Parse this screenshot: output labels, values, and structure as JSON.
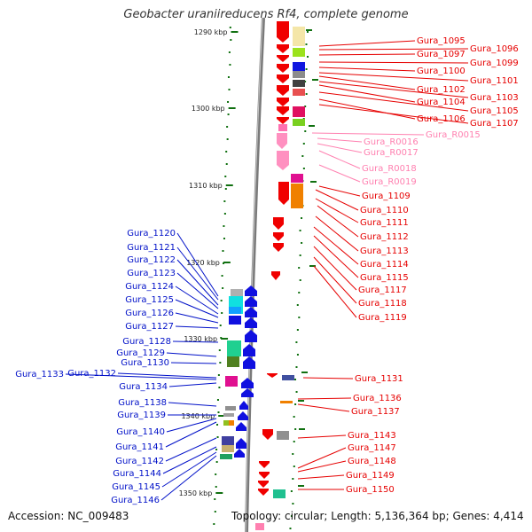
{
  "title": "Geobacter uraniireducens Rf4, complete genome",
  "footer": {
    "accession": "Accession: NC_009483",
    "topology": "Topology: circular; Length: 5,136,364 bp; Genes: 4,414"
  },
  "colors": {
    "forward_label": "#e60000",
    "reverse_label": "#0010c8",
    "rna_label": "#ff80b0",
    "backbone": "#808080",
    "tick": "#107010",
    "gene_forward": "#f00000",
    "gene_reverse": "#1010e0",
    "gene_rna": "#ff90c0"
  },
  "scale": {
    "unit": "kbp",
    "ticks": [
      {
        "label": "1290 kbp",
        "value": 1290
      },
      {
        "label": "1300 kbp",
        "value": 1300
      },
      {
        "label": "1310 kbp",
        "value": 1310
      },
      {
        "label": "1320 kbp",
        "value": 1320
      },
      {
        "label": "1330 kbp",
        "value": 1330
      },
      {
        "label": "1340 kbp",
        "value": 1340
      },
      {
        "label": "1350 kbp",
        "value": 1350
      }
    ]
  },
  "labels_right": [
    {
      "text": "Gura_1095",
      "kind": "forward"
    },
    {
      "text": "Gura_1096",
      "kind": "forward"
    },
    {
      "text": "Gura_1097",
      "kind": "forward"
    },
    {
      "text": "Gura_1099",
      "kind": "forward"
    },
    {
      "text": "Gura_1100",
      "kind": "forward"
    },
    {
      "text": "Gura_1101",
      "kind": "forward"
    },
    {
      "text": "Gura_1102",
      "kind": "forward"
    },
    {
      "text": "Gura_1103",
      "kind": "forward"
    },
    {
      "text": "Gura_1104",
      "kind": "forward"
    },
    {
      "text": "Gura_1105",
      "kind": "forward"
    },
    {
      "text": "Gura_1106",
      "kind": "forward"
    },
    {
      "text": "Gura_1107",
      "kind": "forward"
    },
    {
      "text": "Gura_R0015",
      "kind": "rna"
    },
    {
      "text": "Gura_R0016",
      "kind": "rna"
    },
    {
      "text": "Gura_R0017",
      "kind": "rna"
    },
    {
      "text": "Gura_R0018",
      "kind": "rna"
    },
    {
      "text": "Gura_R0019",
      "kind": "rna"
    },
    {
      "text": "Gura_1109",
      "kind": "forward"
    },
    {
      "text": "Gura_1110",
      "kind": "forward"
    },
    {
      "text": "Gura_1111",
      "kind": "forward"
    },
    {
      "text": "Gura_1112",
      "kind": "forward"
    },
    {
      "text": "Gura_1113",
      "kind": "forward"
    },
    {
      "text": "Gura_1114",
      "kind": "forward"
    },
    {
      "text": "Gura_1115",
      "kind": "forward"
    },
    {
      "text": "Gura_1117",
      "kind": "forward"
    },
    {
      "text": "Gura_1118",
      "kind": "forward"
    },
    {
      "text": "Gura_1119",
      "kind": "forward"
    },
    {
      "text": "Gura_1131",
      "kind": "forward"
    },
    {
      "text": "Gura_1136",
      "kind": "forward"
    },
    {
      "text": "Gura_1137",
      "kind": "forward"
    },
    {
      "text": "Gura_1143",
      "kind": "forward"
    },
    {
      "text": "Gura_1147",
      "kind": "forward"
    },
    {
      "text": "Gura_1148",
      "kind": "forward"
    },
    {
      "text": "Gura_1149",
      "kind": "forward"
    },
    {
      "text": "Gura_1150",
      "kind": "forward"
    }
  ],
  "labels_left": [
    {
      "text": "Gura_1120"
    },
    {
      "text": "Gura_1121"
    },
    {
      "text": "Gura_1122"
    },
    {
      "text": "Gura_1123"
    },
    {
      "text": "Gura_1124"
    },
    {
      "text": "Gura_1125"
    },
    {
      "text": "Gura_1126"
    },
    {
      "text": "Gura_1127"
    },
    {
      "text": "Gura_1128"
    },
    {
      "text": "Gura_1129"
    },
    {
      "text": "Gura_1130"
    },
    {
      "text": "Gura_1132"
    },
    {
      "text": "Gura_1133"
    },
    {
      "text": "Gura_1134"
    },
    {
      "text": "Gura_1138"
    },
    {
      "text": "Gura_1139"
    },
    {
      "text": "Gura_1140"
    },
    {
      "text": "Gura_1141"
    },
    {
      "text": "Gura_1142"
    },
    {
      "text": "Gura_1144"
    },
    {
      "text": "Gura_1145"
    },
    {
      "text": "Gura_1146"
    }
  ]
}
